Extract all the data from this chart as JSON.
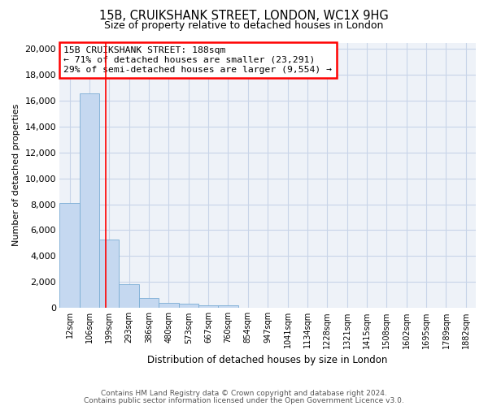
{
  "title_line1": "15B, CRUIKSHANK STREET, LONDON, WC1X 9HG",
  "title_line2": "Size of property relative to detached houses in London",
  "xlabel": "Distribution of detached houses by size in London",
  "ylabel": "Number of detached properties",
  "bar_color": "#c5d8f0",
  "bar_edge_color": "#7aadd4",
  "annotation_line_color": "red",
  "annotation_box_color": "red",
  "annotation_text": "15B CRUIKSHANK STREET: 188sqm\n← 71% of detached houses are smaller (23,291)\n29% of semi-detached houses are larger (9,554) →",
  "categories": [
    "12sqm",
    "106sqm",
    "199sqm",
    "293sqm",
    "386sqm",
    "480sqm",
    "573sqm",
    "667sqm",
    "760sqm",
    "854sqm",
    "947sqm",
    "1041sqm",
    "1134sqm",
    "1228sqm",
    "1321sqm",
    "1415sqm",
    "1508sqm",
    "1602sqm",
    "1695sqm",
    "1789sqm",
    "1882sqm"
  ],
  "bar_values": [
    8100,
    16600,
    5300,
    1850,
    750,
    380,
    290,
    215,
    170,
    0,
    0,
    0,
    0,
    0,
    0,
    0,
    0,
    0,
    0,
    0,
    0
  ],
  "red_line_x": 1.82,
  "ylim": [
    0,
    20500
  ],
  "yticks": [
    0,
    2000,
    4000,
    6000,
    8000,
    10000,
    12000,
    14000,
    16000,
    18000,
    20000
  ],
  "grid_color": "#c8d4e8",
  "background_color": "#eef2f8",
  "footer_line1": "Contains HM Land Registry data © Crown copyright and database right 2024.",
  "footer_line2": "Contains public sector information licensed under the Open Government Licence v3.0."
}
